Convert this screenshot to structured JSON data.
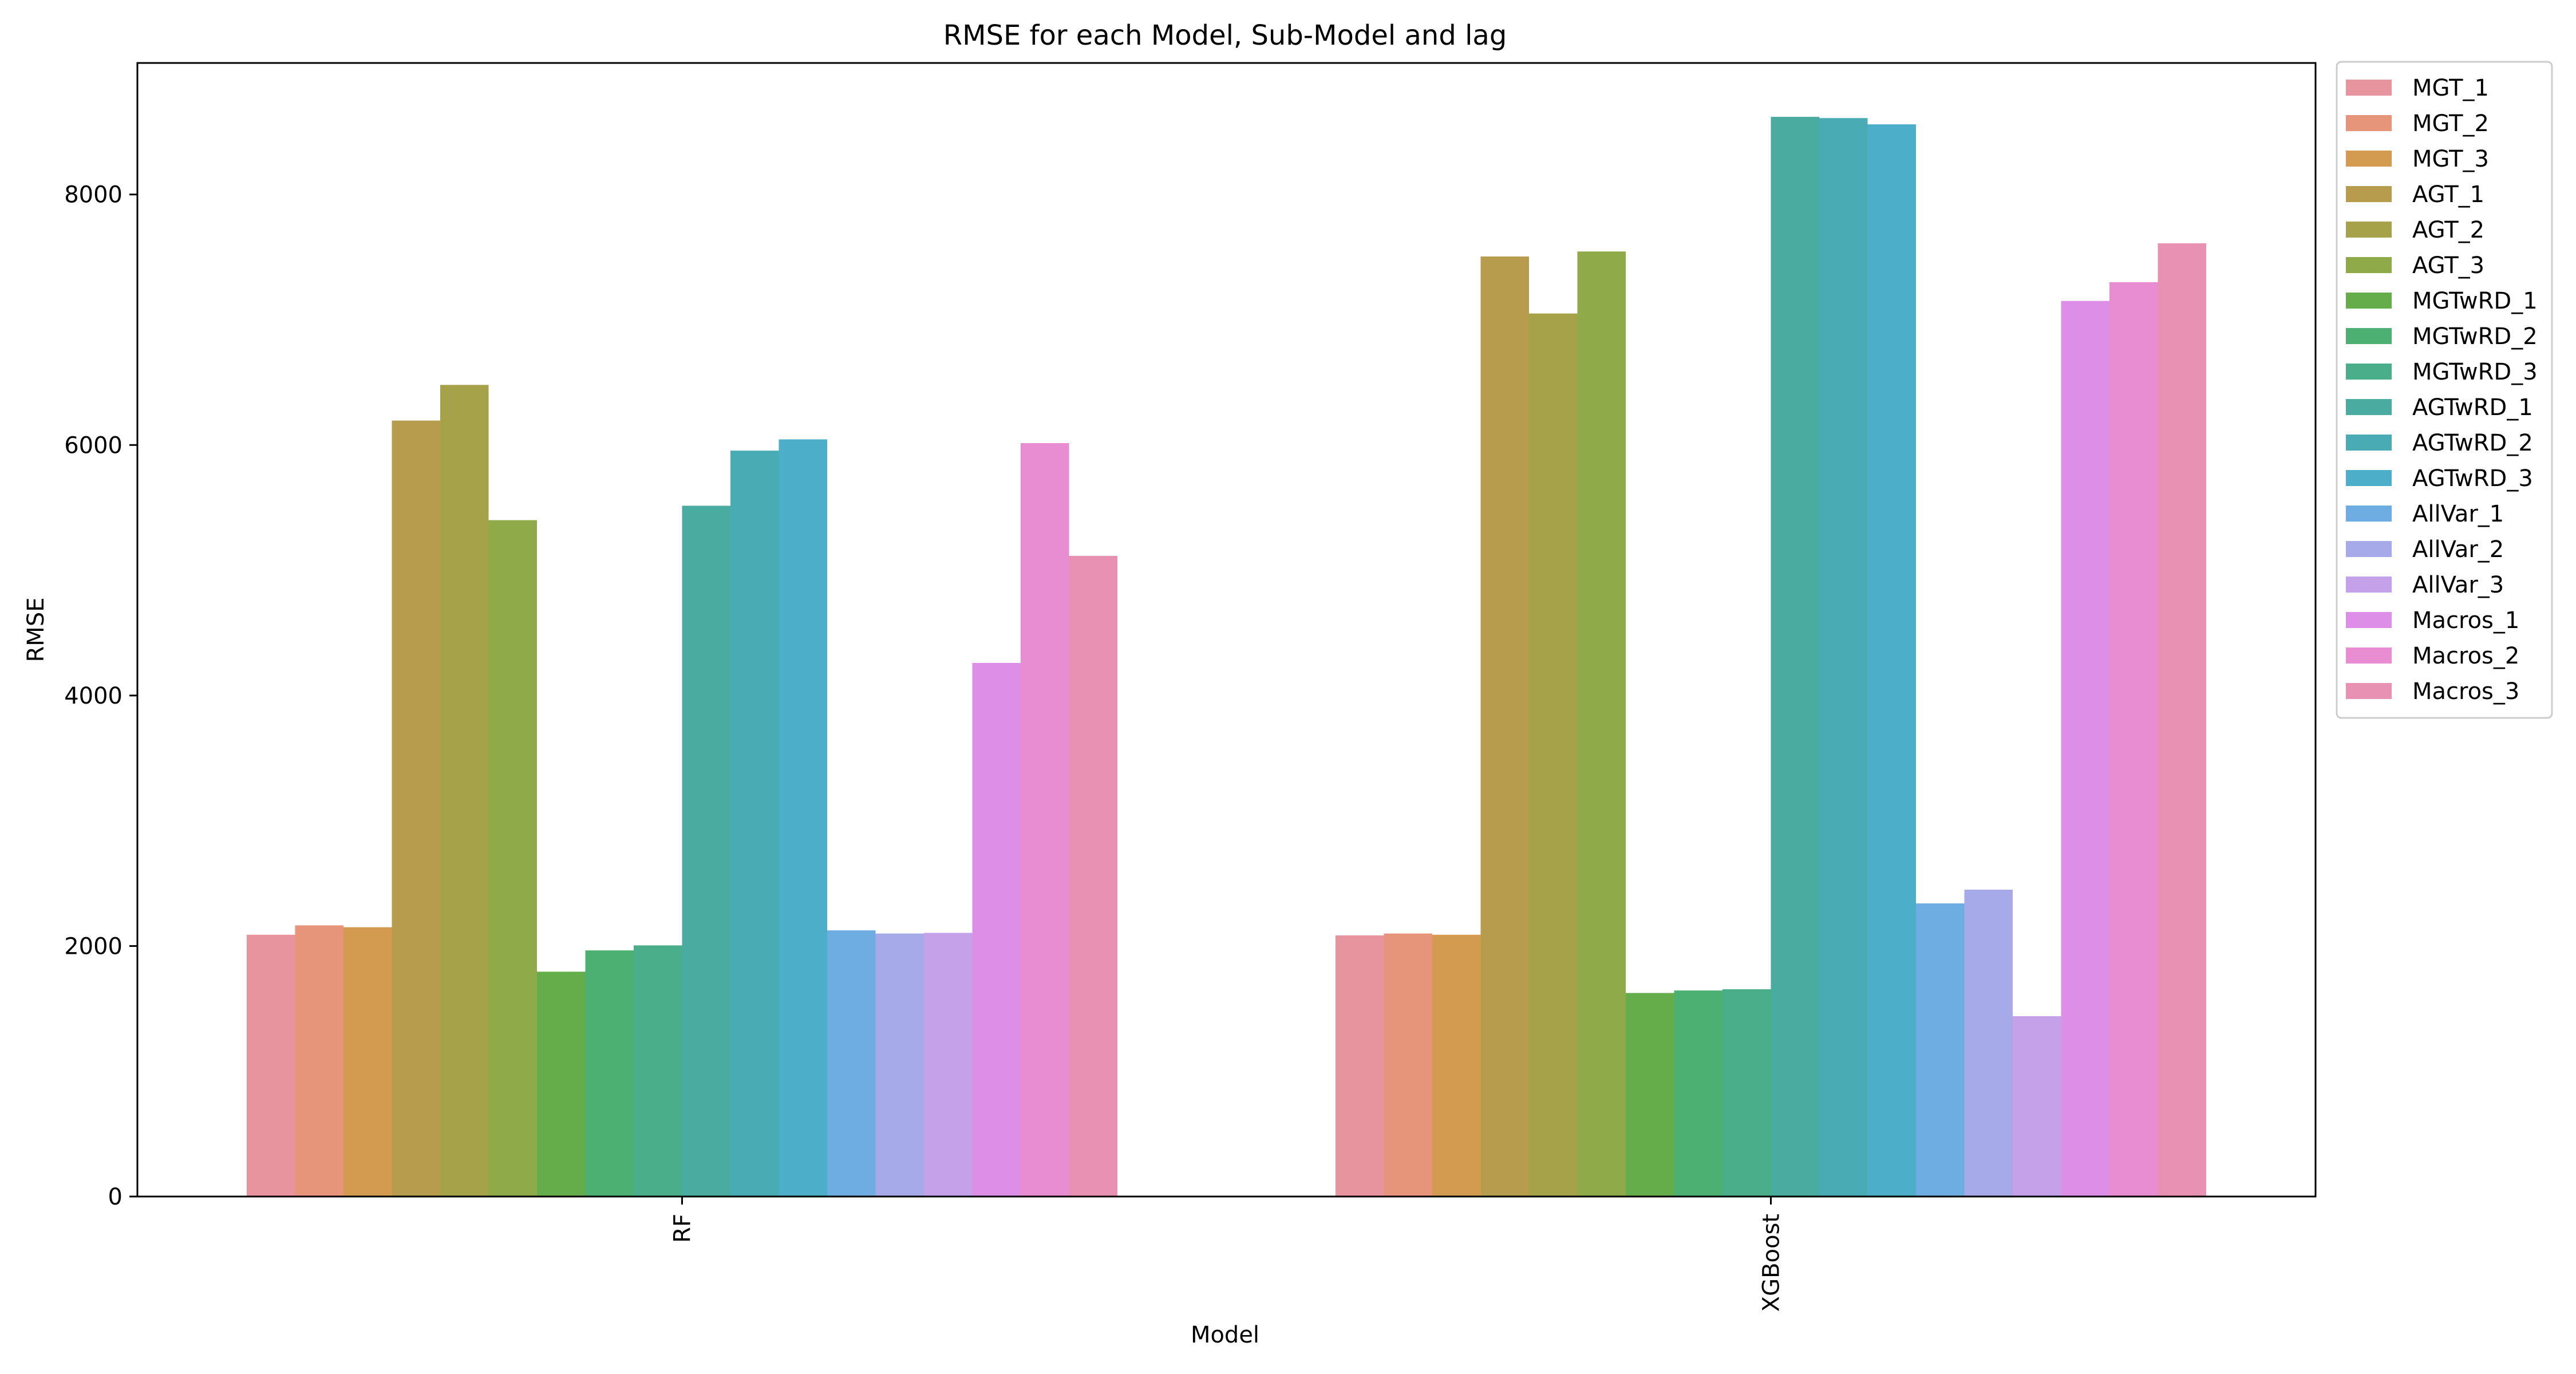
{
  "chart_data": {
    "type": "bar",
    "title": "RMSE for each Model, Sub-Model and lag",
    "xlabel": "Model",
    "ylabel": "RMSE",
    "categories": [
      "RF",
      "XGBoost"
    ],
    "ylim": [
      0,
      9050
    ],
    "yticks": [
      0,
      2000,
      4000,
      6000,
      8000
    ],
    "grid": false,
    "legend_position": "outside-right",
    "series": [
      {
        "name": "MGT_1",
        "color": "#e8949e",
        "values": [
          2090,
          2085
        ]
      },
      {
        "name": "MGT_2",
        "color": "#e6957b",
        "values": [
          2165,
          2100
        ]
      },
      {
        "name": "MGT_3",
        "color": "#d39b50",
        "values": [
          2150,
          2090
        ]
      },
      {
        "name": "AGT_1",
        "color": "#b89c4e",
        "values": [
          6195,
          7505
        ]
      },
      {
        "name": "AGT_2",
        "color": "#a5a24a",
        "values": [
          6480,
          7050
        ]
      },
      {
        "name": "AGT_3",
        "color": "#8faa48",
        "values": [
          5400,
          7545
        ]
      },
      {
        "name": "MGTwRD_1",
        "color": "#65ad4b",
        "values": [
          1795,
          1625
        ]
      },
      {
        "name": "MGTwRD_2",
        "color": "#4cb072",
        "values": [
          1965,
          1645
        ]
      },
      {
        "name": "MGTwRD_3",
        "color": "#4aae8a",
        "values": [
          2005,
          1655
        ]
      },
      {
        "name": "AGTwRD_1",
        "color": "#4aaba1",
        "values": [
          5515,
          8620
        ]
      },
      {
        "name": "AGTwRD_2",
        "color": "#49acb5",
        "values": [
          5955,
          8610
        ]
      },
      {
        "name": "AGTwRD_3",
        "color": "#4daec9",
        "values": [
          6045,
          8560
        ]
      },
      {
        "name": "AllVar_1",
        "color": "#6dade2",
        "values": [
          2125,
          2340
        ]
      },
      {
        "name": "AllVar_2",
        "color": "#a6aae8",
        "values": [
          2100,
          2450
        ]
      },
      {
        "name": "AllVar_3",
        "color": "#c4a1e8",
        "values": [
          2105,
          1440
        ]
      },
      {
        "name": "Macros_1",
        "color": "#dd8ee6",
        "values": [
          4260,
          7150
        ]
      },
      {
        "name": "Macros_2",
        "color": "#e98dd2",
        "values": [
          6015,
          7300
        ]
      },
      {
        "name": "Macros_3",
        "color": "#e891b3",
        "values": [
          5115,
          7610
        ]
      }
    ]
  }
}
